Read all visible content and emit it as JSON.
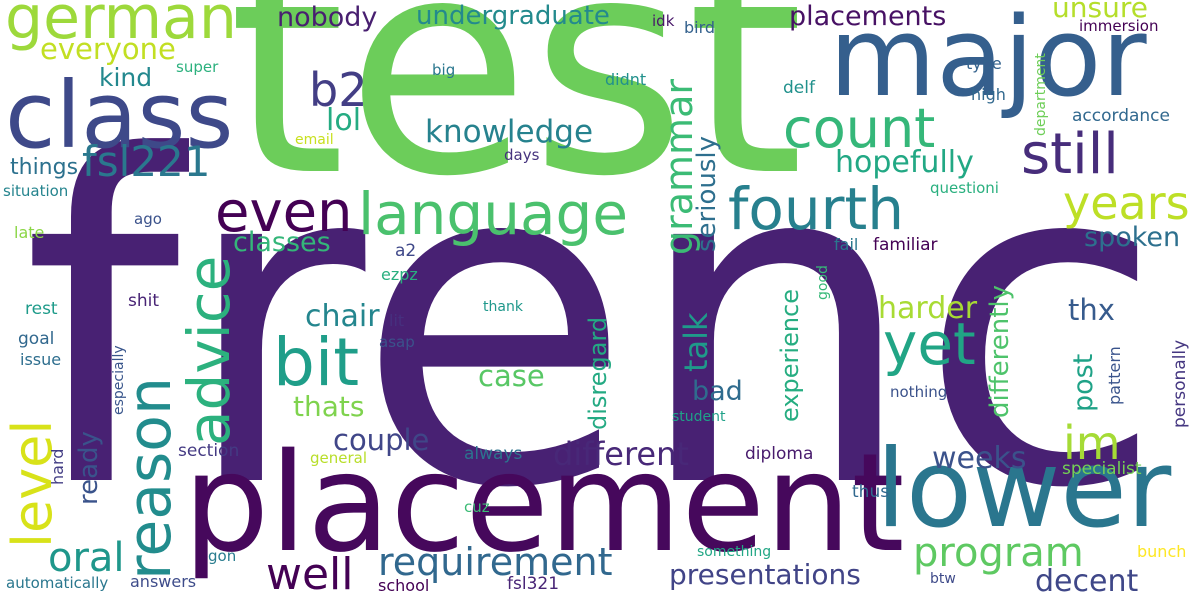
{
  "words": [
    {
      "text": "french",
      "color": "#482173"
    },
    {
      "text": "test",
      "color": "#6ccd5a"
    },
    {
      "text": "placement",
      "color": "#46085c"
    },
    {
      "text": "major",
      "color": "#355f8d"
    },
    {
      "text": "lower",
      "color": "#2a768e"
    },
    {
      "text": "class",
      "color": "#3e4989"
    },
    {
      "text": "german",
      "color": "#9dd93b"
    },
    {
      "text": "language",
      "color": "#4ac16d"
    },
    {
      "text": "fourth",
      "color": "#27808e"
    },
    {
      "text": "count",
      "color": "#35b779"
    },
    {
      "text": "still",
      "color": "#472d7b"
    },
    {
      "text": "even",
      "color": "#440154"
    },
    {
      "text": "yet",
      "color": "#21a585"
    },
    {
      "text": "bit",
      "color": "#1f9e89"
    },
    {
      "text": "reason",
      "color": "#228c8d"
    },
    {
      "text": "advice",
      "color": "#2cb17e"
    },
    {
      "text": "level",
      "color": "#d8e219"
    },
    {
      "text": "b2",
      "color": "#433e85"
    },
    {
      "text": "fsl221",
      "color": "#2a788e"
    },
    {
      "text": "program",
      "color": "#5ec962"
    },
    {
      "text": "requirement",
      "color": "#31688e"
    },
    {
      "text": "well",
      "color": "#440154"
    },
    {
      "text": "oral",
      "color": "#1f978b"
    },
    {
      "text": "years",
      "color": "#bddf26"
    },
    {
      "text": "im",
      "color": "#a5db36"
    },
    {
      "text": "grammar",
      "color": "#3bbb75"
    },
    {
      "text": "knowledge",
      "color": "#26828e"
    },
    {
      "text": "hopefully",
      "color": "#22a884"
    },
    {
      "text": "presentations",
      "color": "#414487"
    },
    {
      "text": "different",
      "color": "#482878"
    },
    {
      "text": "couple",
      "color": "#404688"
    },
    {
      "text": "decent",
      "color": "#3f4788"
    },
    {
      "text": "weeks",
      "color": "#3b528b"
    },
    {
      "text": "everyone",
      "color": "#c2df23"
    },
    {
      "text": "nobody",
      "color": "#481f70"
    },
    {
      "text": "undergraduate",
      "color": "#238a8d"
    },
    {
      "text": "placements",
      "color": "#471164"
    },
    {
      "text": "unsure",
      "color": "#b5de2b"
    },
    {
      "text": "spoken",
      "color": "#2d708e"
    },
    {
      "text": "classes",
      "color": "#34b679"
    },
    {
      "text": "chair",
      "color": "#24868e"
    },
    {
      "text": "lol",
      "color": "#25ab82"
    },
    {
      "text": "kind",
      "color": "#23888e"
    },
    {
      "text": "thats",
      "color": "#7fd34e"
    },
    {
      "text": "case",
      "color": "#58c765"
    },
    {
      "text": "talk",
      "color": "#1f9a8a"
    },
    {
      "text": "bad",
      "color": "#2f6c8e"
    },
    {
      "text": "harder",
      "color": "#a8db34"
    },
    {
      "text": "thx",
      "color": "#375b8d"
    },
    {
      "text": "ready",
      "color": "#3a538b"
    },
    {
      "text": "post",
      "color": "#1fa287"
    },
    {
      "text": "seriously",
      "color": "#2e6f8e"
    },
    {
      "text": "disregard",
      "color": "#24aa83"
    },
    {
      "text": "experience",
      "color": "#26ad81"
    },
    {
      "text": "differently",
      "color": "#4ec36b"
    },
    {
      "text": "things",
      "color": "#2c718e"
    },
    {
      "text": "section",
      "color": "#443a83"
    },
    {
      "text": "always",
      "color": "#2c738e"
    },
    {
      "text": "diploma",
      "color": "#481b6d"
    },
    {
      "text": "specialist",
      "color": "#74d055"
    },
    {
      "text": "familiar",
      "color": "#440154"
    },
    {
      "text": "nothing",
      "color": "#3b528b"
    },
    {
      "text": "answers",
      "color": "#3e4c8a"
    },
    {
      "text": "bunch",
      "color": "#fde725"
    },
    {
      "text": "btw",
      "color": "#3e4a89"
    },
    {
      "text": "fsl321",
      "color": "#482576"
    },
    {
      "text": "school",
      "color": "#440154"
    },
    {
      "text": "automatically",
      "color": "#2a778e"
    },
    {
      "text": "personally",
      "color": "#453781"
    },
    {
      "text": "pattern",
      "color": "#3a548c"
    },
    {
      "text": "hard",
      "color": "#433e85"
    },
    {
      "text": "goal",
      "color": "#31688e"
    },
    {
      "text": "rest",
      "color": "#1e9b8a"
    },
    {
      "text": "issue",
      "color": "#2e6e8e"
    },
    {
      "text": "late",
      "color": "#8bd646"
    },
    {
      "text": "situation",
      "color": "#25848e"
    },
    {
      "text": "especially",
      "color": "#39568c"
    },
    {
      "text": "super",
      "color": "#2cb17e"
    },
    {
      "text": "big",
      "color": "#2a778e"
    },
    {
      "text": "didnt",
      "color": "#21918c"
    },
    {
      "text": "idk",
      "color": "#481769"
    },
    {
      "text": "bird",
      "color": "#34618d"
    },
    {
      "text": "immersion",
      "color": "#440154"
    },
    {
      "text": "department",
      "color": "#6ece58"
    },
    {
      "text": "type",
      "color": "#33628d"
    },
    {
      "text": "high",
      "color": "#31688e"
    },
    {
      "text": "delf",
      "color": "#21918c"
    },
    {
      "text": "accordance",
      "color": "#31688e"
    },
    {
      "text": "email",
      "color": "#c8e020"
    },
    {
      "text": "days",
      "color": "#46337e"
    },
    {
      "text": "questioni",
      "color": "#2ab07f"
    },
    {
      "text": "ago",
      "color": "#3b528b"
    },
    {
      "text": "a2",
      "color": "#3f4889"
    },
    {
      "text": "ezpz",
      "color": "#29af7f"
    },
    {
      "text": "fail",
      "color": "#2a778e"
    },
    {
      "text": "good",
      "color": "#37b878"
    },
    {
      "text": "shit",
      "color": "#482475"
    },
    {
      "text": "lit",
      "color": "#46307e"
    },
    {
      "text": "asap",
      "color": "#3b528b"
    },
    {
      "text": "thank",
      "color": "#1f988b"
    },
    {
      "text": "student",
      "color": "#1fa188"
    },
    {
      "text": "general",
      "color": "#b8de29"
    },
    {
      "text": "cuz",
      "color": "#3bbb75"
    },
    {
      "text": "gon",
      "color": "#287c8e"
    },
    {
      "text": "something",
      "color": "#22a785"
    },
    {
      "text": "thus",
      "color": "#31688e"
    }
  ]
}
